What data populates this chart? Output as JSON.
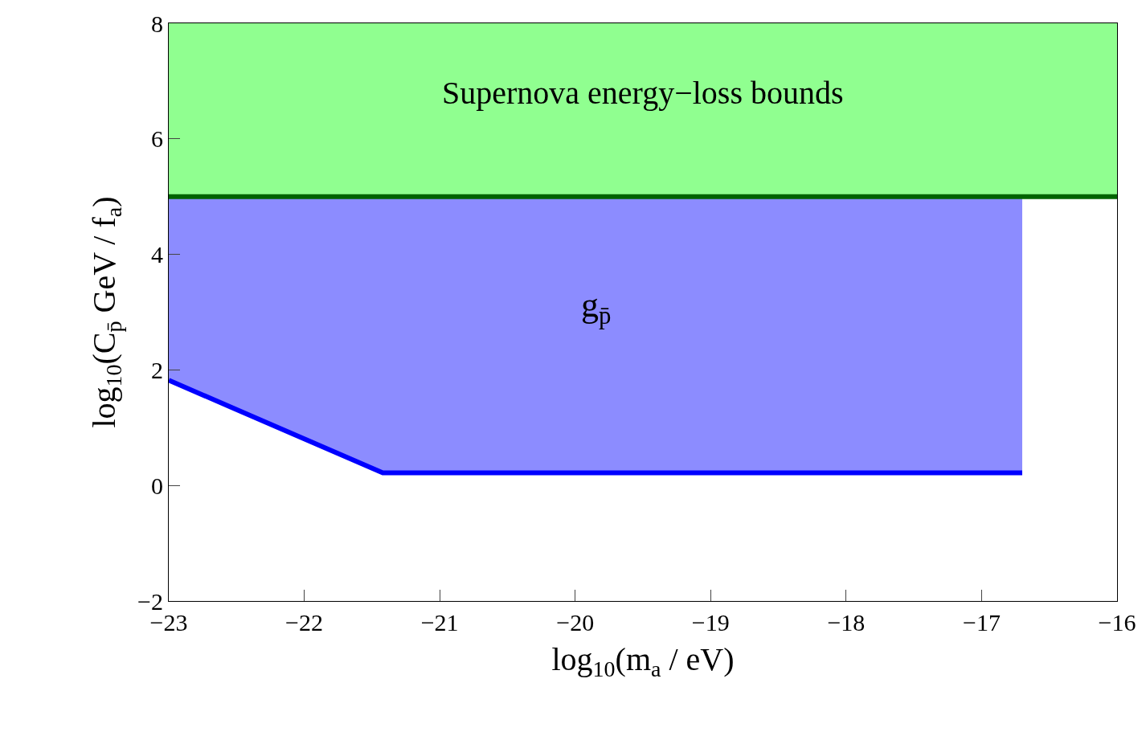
{
  "chart_data": {
    "type": "line",
    "xlabel": "log$_{10}$(m$_{a}$ / eV)",
    "ylabel": "log$_{10}$(C$_{p̄}$ GeV / f$_{a}$)",
    "series": [
      {
        "color": "#0000ff",
        "x": [
          -23,
          -21.42,
          -16.7
        ],
        "values": [
          1.82,
          0.22,
          0.22
        ],
        "lower": [
          1.82,
          0.22,
          0.22
        ],
        "upper": [
          5,
          5,
          5
        ]
      }
    ],
    "bands": [
      {
        "axis": "y",
        "from": 5,
        "to": 8,
        "label": "Supernova energy−loss bounds",
        "color": "#90ff90"
      }
    ],
    "ref_lines": [
      {
        "axis": "y",
        "value": 5,
        "color": "#006400"
      }
    ],
    "annotations": [
      "g$_{p̄}$"
    ],
    "xlim": [
      -23,
      -16
    ],
    "ylim": [
      -2,
      8
    ],
    "xticks": [
      -23,
      -22,
      -21,
      -20,
      -19,
      -18,
      -17,
      -16
    ],
    "yticks": [
      -2,
      0,
      2,
      4,
      6,
      8
    ],
    "grid": false,
    "legend": false,
    "marker": "none",
    "line_style": "solid"
  }
}
